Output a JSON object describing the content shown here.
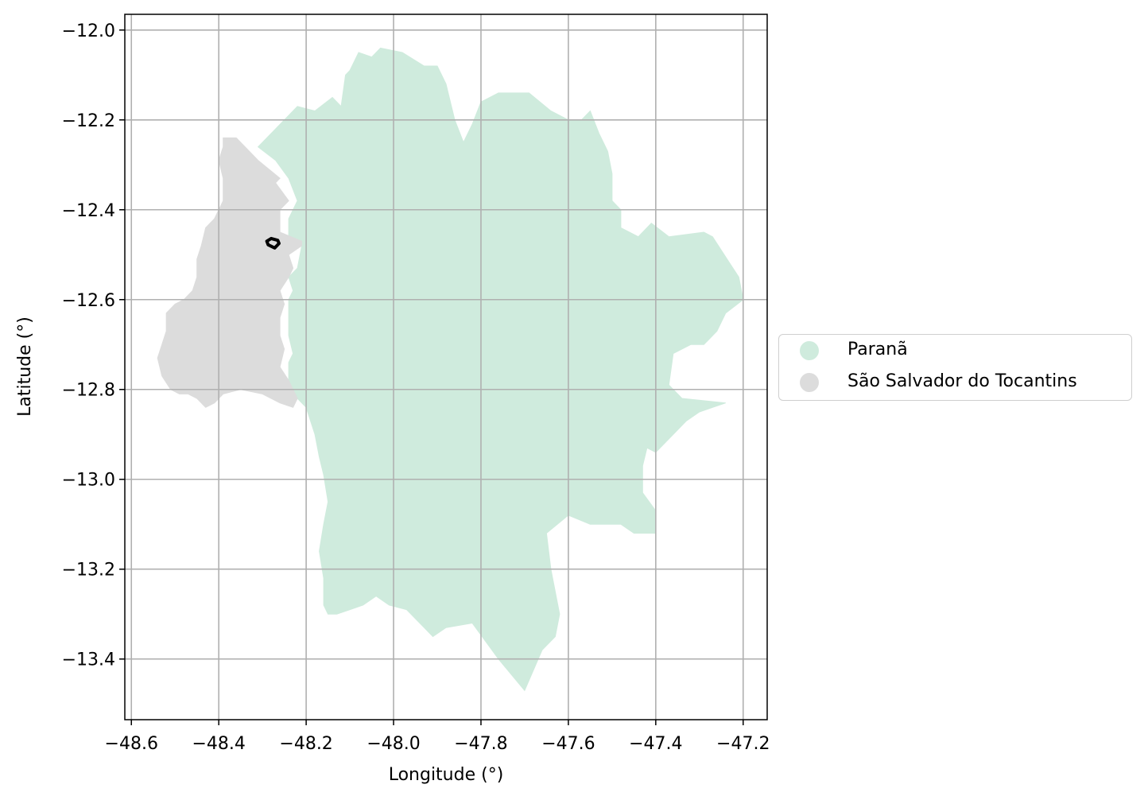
{
  "chart_data": {
    "type": "map",
    "xlabel": "Longitude (°)",
    "ylabel": "Latitude (°)",
    "xlim": [
      -48.615,
      -47.145
    ],
    "ylim": [
      -13.535,
      -11.965
    ],
    "xticks": [
      -48.6,
      -48.4,
      -48.2,
      -48.0,
      -47.8,
      -47.6,
      -47.4,
      -47.2
    ],
    "xtick_labels": [
      "−48.6",
      "−48.4",
      "−48.2",
      "−48.0",
      "−47.8",
      "−47.6",
      "−47.4",
      "−47.2"
    ],
    "yticks": [
      -12.0,
      -12.2,
      -12.4,
      -12.6,
      -12.8,
      -13.0,
      -13.2,
      -13.4
    ],
    "ytick_labels": [
      "−12.0",
      "−12.2",
      "−12.4",
      "−12.6",
      "−12.8",
      "−13.0",
      "−13.2",
      "−13.4"
    ],
    "grid": true,
    "legend_position": "center-right outside",
    "regions": [
      {
        "name": "Paranã",
        "color": "#cfebdd",
        "polygon": [
          [
            -48.31,
            -12.26
          ],
          [
            -48.25,
            -12.2
          ],
          [
            -48.22,
            -12.17
          ],
          [
            -48.18,
            -12.18
          ],
          [
            -48.14,
            -12.15
          ],
          [
            -48.12,
            -12.17
          ],
          [
            -48.11,
            -12.1
          ],
          [
            -48.1,
            -12.09
          ],
          [
            -48.08,
            -12.05
          ],
          [
            -48.05,
            -12.06
          ],
          [
            -48.03,
            -12.04
          ],
          [
            -47.98,
            -12.05
          ],
          [
            -47.93,
            -12.08
          ],
          [
            -47.9,
            -12.08
          ],
          [
            -47.88,
            -12.12
          ],
          [
            -47.86,
            -12.2
          ],
          [
            -47.84,
            -12.25
          ],
          [
            -47.82,
            -12.21
          ],
          [
            -47.8,
            -12.16
          ],
          [
            -47.76,
            -12.14
          ],
          [
            -47.69,
            -12.14
          ],
          [
            -47.64,
            -12.18
          ],
          [
            -47.6,
            -12.2
          ],
          [
            -47.57,
            -12.2
          ],
          [
            -47.55,
            -12.18
          ],
          [
            -47.53,
            -12.23
          ],
          [
            -47.51,
            -12.27
          ],
          [
            -47.5,
            -12.32
          ],
          [
            -47.5,
            -12.38
          ],
          [
            -47.48,
            -12.4
          ],
          [
            -47.48,
            -12.44
          ],
          [
            -47.44,
            -12.46
          ],
          [
            -47.41,
            -12.43
          ],
          [
            -47.37,
            -12.46
          ],
          [
            -47.29,
            -12.45
          ],
          [
            -47.27,
            -12.46
          ],
          [
            -47.23,
            -12.52
          ],
          [
            -47.21,
            -12.55
          ],
          [
            -47.2,
            -12.6
          ],
          [
            -47.24,
            -12.63
          ],
          [
            -47.26,
            -12.67
          ],
          [
            -47.29,
            -12.7
          ],
          [
            -47.32,
            -12.7
          ],
          [
            -47.36,
            -12.72
          ],
          [
            -47.37,
            -12.79
          ],
          [
            -47.34,
            -12.82
          ],
          [
            -47.24,
            -12.83
          ],
          [
            -47.27,
            -12.84
          ],
          [
            -47.3,
            -12.85
          ],
          [
            -47.33,
            -12.87
          ],
          [
            -47.37,
            -12.91
          ],
          [
            -47.4,
            -12.94
          ],
          [
            -47.42,
            -12.93
          ],
          [
            -47.43,
            -12.97
          ],
          [
            -47.43,
            -13.03
          ],
          [
            -47.4,
            -13.07
          ],
          [
            -47.4,
            -13.12
          ],
          [
            -47.45,
            -13.12
          ],
          [
            -47.48,
            -13.1
          ],
          [
            -47.55,
            -13.1
          ],
          [
            -47.6,
            -13.08
          ],
          [
            -47.65,
            -13.12
          ],
          [
            -47.64,
            -13.2
          ],
          [
            -47.63,
            -13.25
          ],
          [
            -47.62,
            -13.3
          ],
          [
            -47.63,
            -13.35
          ],
          [
            -47.66,
            -13.38
          ],
          [
            -47.7,
            -13.47
          ],
          [
            -47.76,
            -13.4
          ],
          [
            -47.82,
            -13.32
          ],
          [
            -47.88,
            -13.33
          ],
          [
            -47.91,
            -13.35
          ],
          [
            -47.93,
            -13.33
          ],
          [
            -47.97,
            -13.29
          ],
          [
            -48.01,
            -13.28
          ],
          [
            -48.04,
            -13.26
          ],
          [
            -48.07,
            -13.28
          ],
          [
            -48.1,
            -13.29
          ],
          [
            -48.13,
            -13.3
          ],
          [
            -48.15,
            -13.3
          ],
          [
            -48.16,
            -13.28
          ],
          [
            -48.16,
            -13.22
          ],
          [
            -48.17,
            -13.16
          ],
          [
            -48.16,
            -13.1
          ],
          [
            -48.15,
            -13.05
          ],
          [
            -48.16,
            -12.99
          ],
          [
            -48.17,
            -12.95
          ],
          [
            -48.18,
            -12.9
          ],
          [
            -48.2,
            -12.84
          ],
          [
            -48.22,
            -12.82
          ],
          [
            -48.23,
            -12.8
          ],
          [
            -48.24,
            -12.78
          ],
          [
            -48.24,
            -12.74
          ],
          [
            -48.23,
            -12.72
          ],
          [
            -48.24,
            -12.68
          ],
          [
            -48.24,
            -12.64
          ],
          [
            -48.24,
            -12.6
          ],
          [
            -48.23,
            -12.58
          ],
          [
            -48.24,
            -12.55
          ],
          [
            -48.22,
            -12.53
          ],
          [
            -48.21,
            -12.48
          ],
          [
            -48.24,
            -12.46
          ],
          [
            -48.24,
            -12.42
          ],
          [
            -48.22,
            -12.38
          ],
          [
            -48.24,
            -12.33
          ],
          [
            -48.27,
            -12.29
          ]
        ]
      },
      {
        "name": "São Salvador do Tocantins",
        "color": "#dcdcdc",
        "polygon": [
          [
            -48.39,
            -12.24
          ],
          [
            -48.36,
            -12.24
          ],
          [
            -48.33,
            -12.27
          ],
          [
            -48.31,
            -12.29
          ],
          [
            -48.26,
            -12.33
          ],
          [
            -48.27,
            -12.34
          ],
          [
            -48.24,
            -12.38
          ],
          [
            -48.26,
            -12.4
          ],
          [
            -48.26,
            -12.43
          ],
          [
            -48.26,
            -12.45
          ],
          [
            -48.21,
            -12.47
          ],
          [
            -48.21,
            -12.48
          ],
          [
            -48.24,
            -12.5
          ],
          [
            -48.23,
            -12.53
          ],
          [
            -48.24,
            -12.55
          ],
          [
            -48.26,
            -12.58
          ],
          [
            -48.25,
            -12.61
          ],
          [
            -48.26,
            -12.64
          ],
          [
            -48.26,
            -12.68
          ],
          [
            -48.25,
            -12.71
          ],
          [
            -48.26,
            -12.75
          ],
          [
            -48.24,
            -12.78
          ],
          [
            -48.23,
            -12.8
          ],
          [
            -48.22,
            -12.82
          ],
          [
            -48.23,
            -12.84
          ],
          [
            -48.26,
            -12.83
          ],
          [
            -48.3,
            -12.81
          ],
          [
            -48.35,
            -12.8
          ],
          [
            -48.39,
            -12.81
          ],
          [
            -48.41,
            -12.83
          ],
          [
            -48.43,
            -12.84
          ],
          [
            -48.45,
            -12.82
          ],
          [
            -48.47,
            -12.81
          ],
          [
            -48.49,
            -12.81
          ],
          [
            -48.51,
            -12.8
          ],
          [
            -48.53,
            -12.77
          ],
          [
            -48.54,
            -12.73
          ],
          [
            -48.53,
            -12.7
          ],
          [
            -48.52,
            -12.67
          ],
          [
            -48.52,
            -12.63
          ],
          [
            -48.5,
            -12.61
          ],
          [
            -48.48,
            -12.6
          ],
          [
            -48.46,
            -12.58
          ],
          [
            -48.45,
            -12.55
          ],
          [
            -48.45,
            -12.51
          ],
          [
            -48.44,
            -12.48
          ],
          [
            -48.43,
            -12.44
          ],
          [
            -48.41,
            -12.42
          ],
          [
            -48.39,
            -12.38
          ],
          [
            -48.39,
            -12.33
          ],
          [
            -48.4,
            -12.29
          ],
          [
            -48.39,
            -12.26
          ]
        ]
      }
    ],
    "highlight": {
      "style": "black outline",
      "polygon": [
        [
          -48.29,
          -12.47
        ],
        [
          -48.28,
          -12.464
        ],
        [
          -48.265,
          -12.468
        ],
        [
          -48.262,
          -12.475
        ],
        [
          -48.272,
          -12.485
        ],
        [
          -48.287,
          -12.478
        ]
      ]
    }
  },
  "legend": {
    "items": [
      {
        "label": "Paranã",
        "color": "#cfebdd"
      },
      {
        "label": "São Salvador do Tocantins",
        "color": "#dcdcdc"
      }
    ]
  }
}
